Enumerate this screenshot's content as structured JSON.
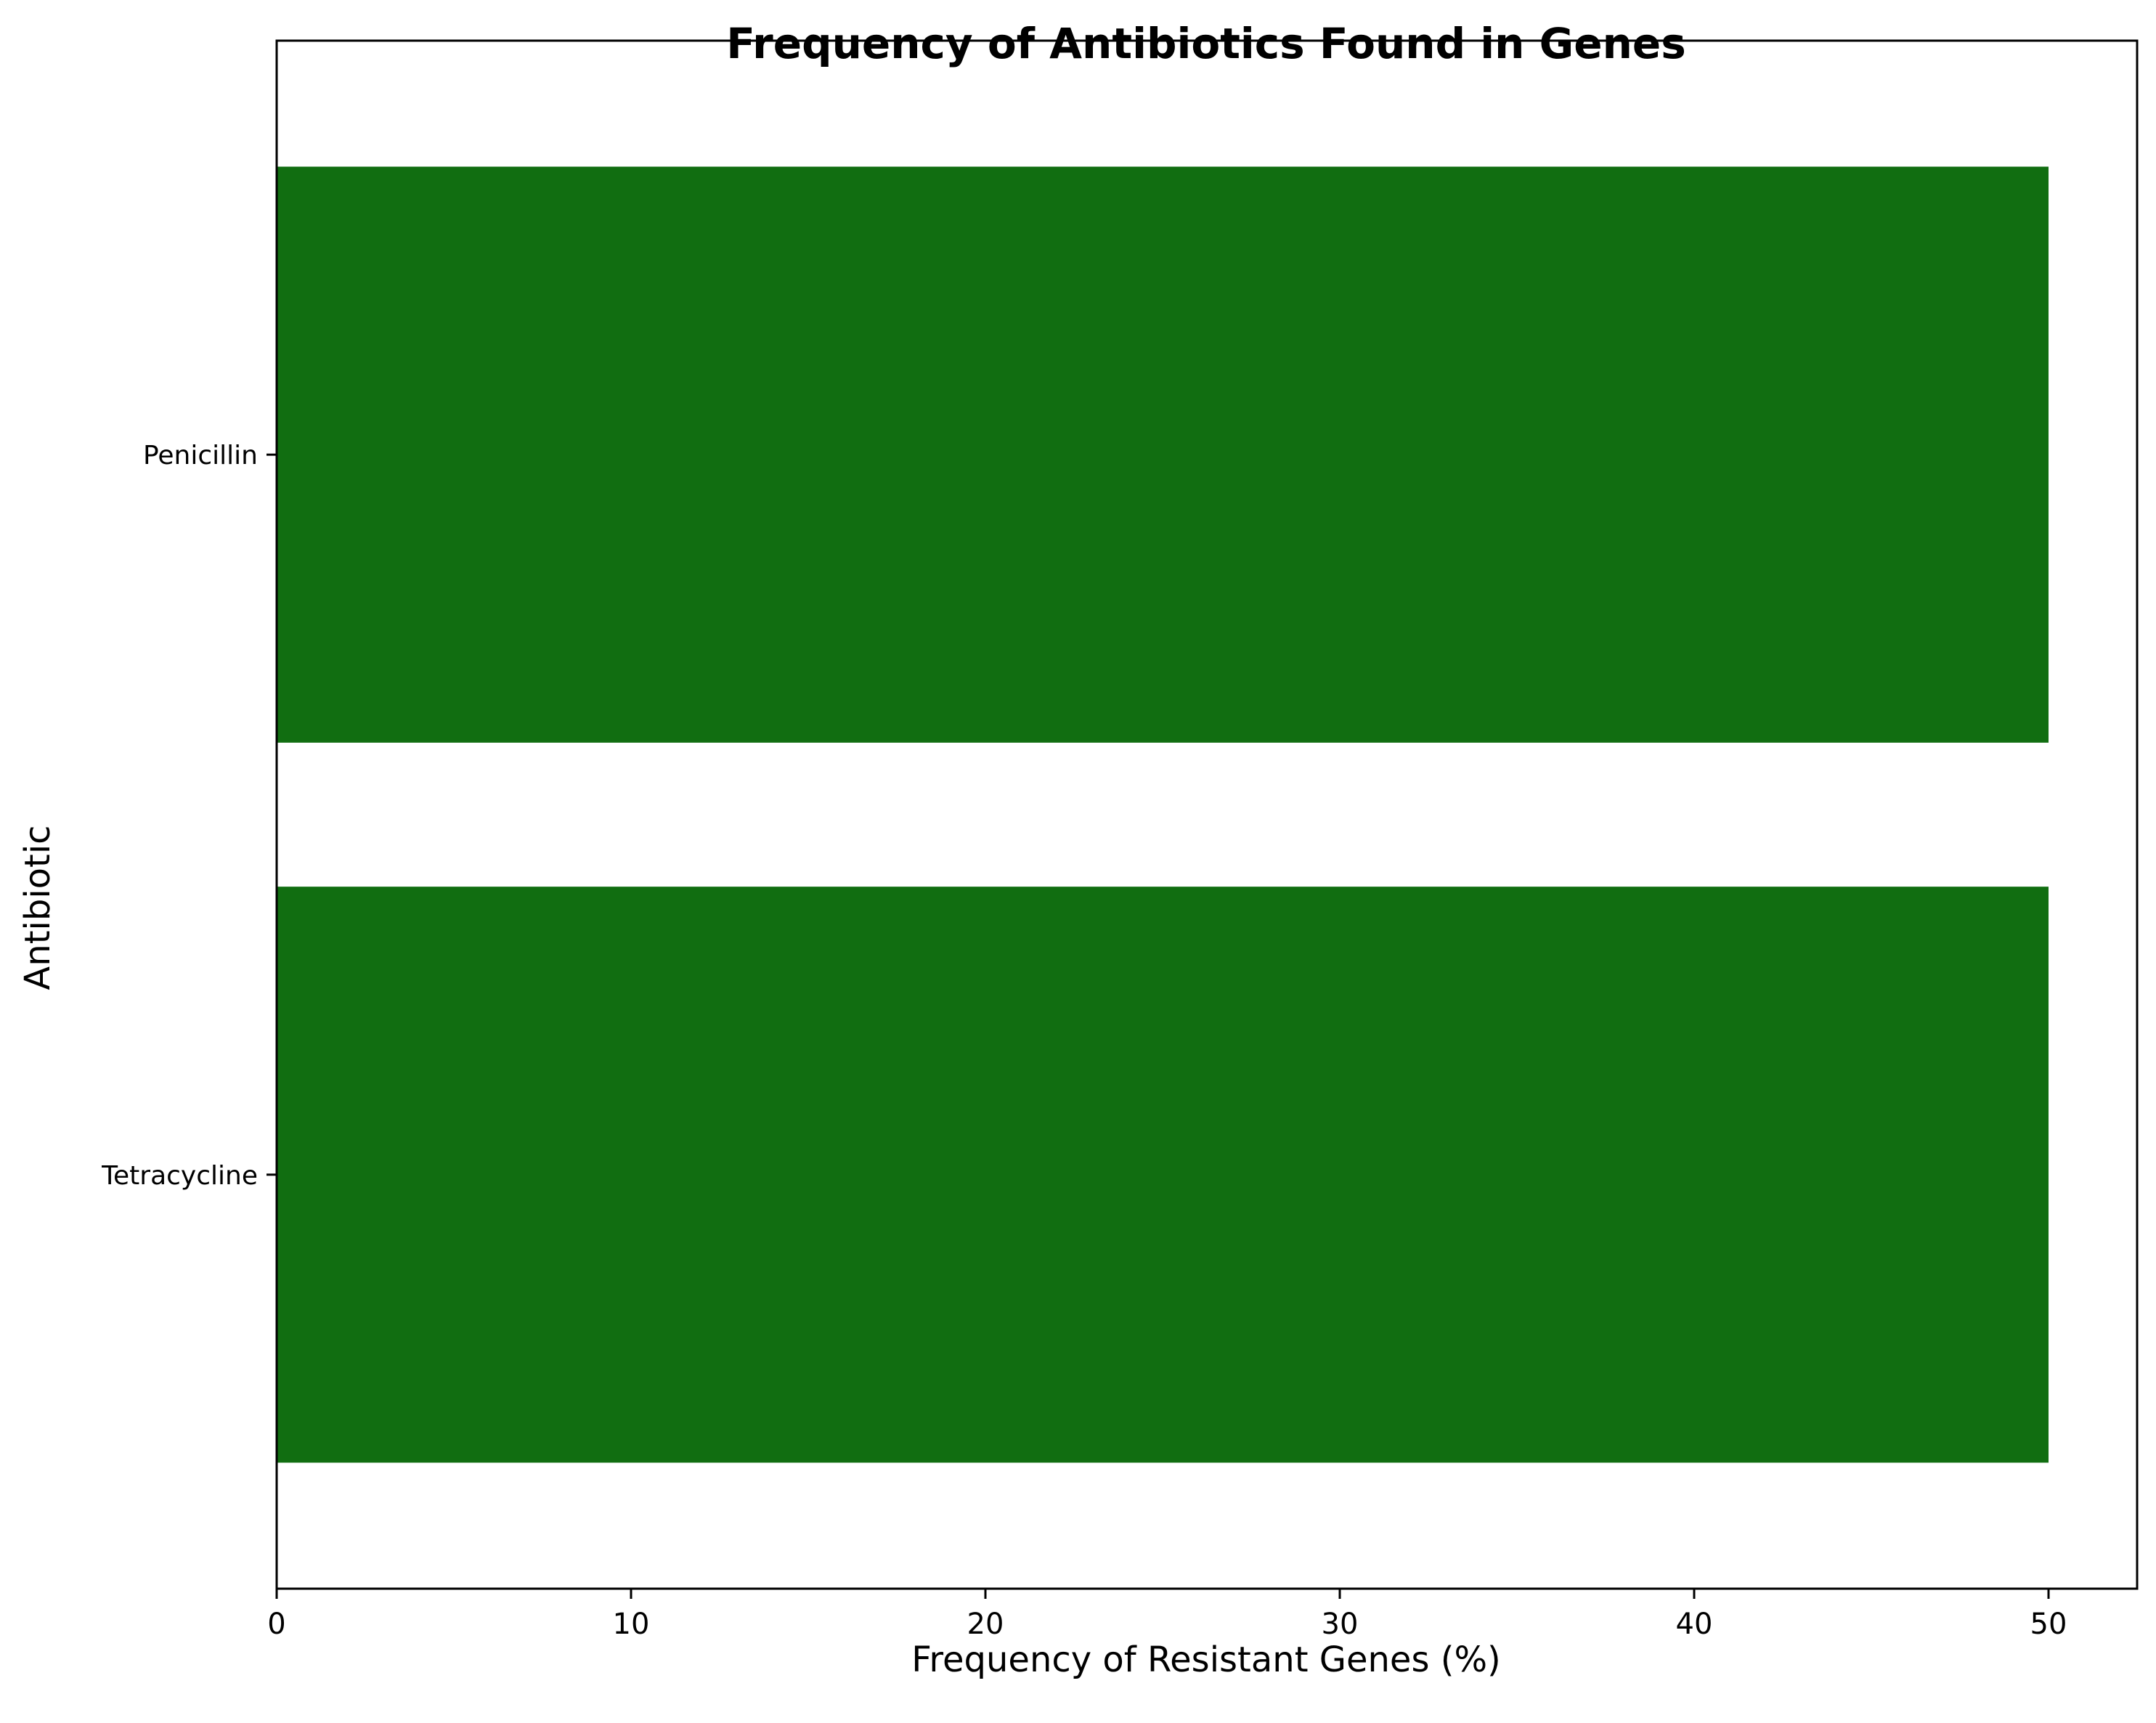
{
  "chart_data": {
    "type": "bar",
    "orientation": "horizontal",
    "title": "Frequency of Antibiotics Found in Genes",
    "xlabel": "Frequency of Resistant Genes (%)",
    "ylabel": "Antibiotic",
    "categories": [
      "Penicillin",
      "Tetracycline"
    ],
    "values": [
      50,
      50
    ],
    "xlim": [
      0,
      52.5
    ],
    "xticks": [
      0,
      10,
      20,
      30,
      40,
      50
    ],
    "bar_color": "#116e11",
    "grid": false,
    "legend": "none"
  }
}
